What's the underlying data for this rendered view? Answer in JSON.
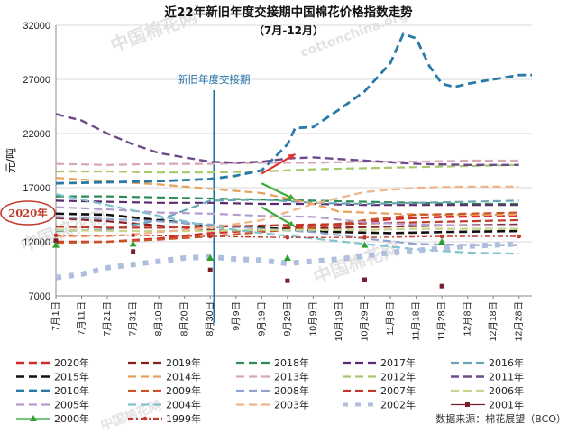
{
  "chart_data": {
    "type": "line",
    "title": "近22年新旧年度交接期中国棉花价格指数走势",
    "subtitle": "（7月-12月）",
    "ylabel": "元/吨",
    "ylim": [
      7000,
      32000
    ],
    "yticks": [
      "32000",
      "27000",
      "22000",
      "17000",
      "12000",
      "7000"
    ],
    "x_labels": [
      "7月1日",
      "7月11日",
      "7月21日",
      "7月31日",
      "8月10日",
      "8月20日",
      "8月30日",
      "9月9日",
      "9月19日",
      "9月29日",
      "10月9日",
      "10月19日",
      "10月29日",
      "11月8日",
      "11月18日",
      "11月28日",
      "12月8日",
      "12月18日",
      "12月28日"
    ],
    "grid": true,
    "annotation": "新旧年度交接期",
    "marker_2020": "2020年",
    "source": "数据来源：棉花展望（BCO）",
    "watermarks": [
      "中国棉花网",
      "cottonchina.org"
    ],
    "series": [
      {
        "name": "2020年",
        "color": "#d42a2a",
        "dash": "long",
        "width": 2.6,
        "points": [
          [
            0,
            12000
          ],
          [
            2,
            12000
          ],
          [
            4,
            12300
          ],
          [
            6,
            12800
          ],
          [
            8,
            13100
          ],
          [
            10,
            13500
          ],
          [
            11,
            13600
          ],
          [
            12,
            13800
          ],
          [
            13,
            14100
          ],
          [
            15,
            14300
          ],
          [
            18,
            14400
          ]
        ]
      },
      {
        "name": "2019年",
        "color": "#8b1d1d",
        "dash": "long",
        "width": 2.2,
        "points": [
          [
            0,
            14200
          ],
          [
            2,
            13900
          ],
          [
            4,
            13500
          ],
          [
            6,
            13100
          ],
          [
            7,
            13000
          ],
          [
            9,
            13200
          ],
          [
            11,
            13300
          ],
          [
            13,
            13400
          ],
          [
            15,
            13500
          ],
          [
            18,
            13600
          ]
        ]
      },
      {
        "name": "2018年",
        "color": "#2e8b57",
        "dash": "long",
        "width": 2.2,
        "points": [
          [
            0,
            16200
          ],
          [
            2,
            16200
          ],
          [
            4,
            16100
          ],
          [
            6,
            16000
          ],
          [
            8,
            15900
          ],
          [
            10,
            15800
          ],
          [
            12,
            15700
          ],
          [
            14,
            15600
          ],
          [
            16,
            15500
          ],
          [
            18,
            15500
          ]
        ]
      },
      {
        "name": "2017年",
        "color": "#5b2c6f",
        "dash": "long",
        "width": 2.2,
        "points": [
          [
            0,
            15800
          ],
          [
            2,
            15700
          ],
          [
            4,
            15600
          ],
          [
            6,
            15600
          ],
          [
            8,
            15500
          ],
          [
            10,
            15500
          ],
          [
            12,
            15400
          ],
          [
            14,
            15400
          ],
          [
            16,
            15400
          ],
          [
            18,
            15400
          ]
        ]
      },
      {
        "name": "2016年",
        "color": "#6aa4b8",
        "dash": "long",
        "width": 2.2,
        "points": [
          [
            0,
            13000
          ],
          [
            2,
            13100
          ],
          [
            4,
            14000
          ],
          [
            6,
            15800
          ],
          [
            8,
            15900
          ],
          [
            10,
            15600
          ],
          [
            12,
            15500
          ],
          [
            14,
            15600
          ],
          [
            16,
            15700
          ],
          [
            18,
            15800
          ]
        ]
      },
      {
        "name": "2015年",
        "color": "#111111",
        "dash": "long",
        "width": 2.6,
        "points": [
          [
            0,
            14600
          ],
          [
            2,
            14500
          ],
          [
            4,
            14000
          ],
          [
            6,
            13500
          ],
          [
            8,
            13300
          ],
          [
            10,
            13000
          ],
          [
            11,
            12900
          ],
          [
            13,
            12800
          ],
          [
            15,
            12900
          ],
          [
            18,
            13000
          ]
        ]
      },
      {
        "name": "2014年",
        "color": "#e8a15c",
        "dash": "long",
        "width": 2.2,
        "points": [
          [
            0,
            17900
          ],
          [
            2,
            17600
          ],
          [
            4,
            17300
          ],
          [
            6,
            16900
          ],
          [
            8,
            16500
          ],
          [
            10,
            15500
          ],
          [
            11,
            14800
          ],
          [
            13,
            14600
          ],
          [
            15,
            14500
          ],
          [
            18,
            14500
          ]
        ]
      },
      {
        "name": "2013年",
        "color": "#d8a7b5",
        "dash": "long",
        "width": 2.2,
        "points": [
          [
            0,
            19200
          ],
          [
            2,
            19100
          ],
          [
            4,
            19200
          ],
          [
            6,
            19200
          ],
          [
            8,
            19300
          ],
          [
            10,
            19300
          ],
          [
            12,
            19400
          ],
          [
            14,
            19400
          ],
          [
            16,
            19500
          ],
          [
            18,
            19500
          ]
        ]
      },
      {
        "name": "2012年",
        "color": "#a7c96a",
        "dash": "long",
        "width": 2.2,
        "points": [
          [
            0,
            18500
          ],
          [
            2,
            18500
          ],
          [
            4,
            18400
          ],
          [
            6,
            18400
          ],
          [
            8,
            18500
          ],
          [
            10,
            18700
          ],
          [
            12,
            18800
          ],
          [
            14,
            18900
          ],
          [
            16,
            19000
          ],
          [
            18,
            19100
          ]
        ]
      },
      {
        "name": "2011年",
        "color": "#6f4a8b",
        "dash": "long",
        "width": 2.4,
        "points": [
          [
            0,
            23800
          ],
          [
            1,
            23200
          ],
          [
            2,
            22000
          ],
          [
            3,
            21000
          ],
          [
            4,
            20200
          ],
          [
            5,
            19800
          ],
          [
            6,
            19400
          ],
          [
            7,
            19300
          ],
          [
            8,
            19400
          ],
          [
            9,
            19700
          ],
          [
            10,
            19800
          ],
          [
            12,
            19500
          ],
          [
            14,
            19200
          ],
          [
            16,
            19100
          ],
          [
            18,
            19100
          ]
        ]
      },
      {
        "name": "2010年",
        "color": "#2a7aa8",
        "dash": "long",
        "width": 2.8,
        "points": [
          [
            0,
            17400
          ],
          [
            2,
            17500
          ],
          [
            4,
            17600
          ],
          [
            6,
            17800
          ],
          [
            7,
            18100
          ],
          [
            8,
            18600
          ],
          [
            9,
            21000
          ],
          [
            9.3,
            22500
          ],
          [
            10,
            22600
          ],
          [
            11,
            24200
          ],
          [
            12,
            25900
          ],
          [
            13,
            28500
          ],
          [
            13.5,
            31200
          ],
          [
            14,
            30800
          ],
          [
            14.5,
            28300
          ],
          [
            15,
            26600
          ],
          [
            15.5,
            26300
          ],
          [
            16,
            26600
          ],
          [
            17,
            27000
          ],
          [
            18,
            27400
          ],
          [
            18.5,
            27400
          ]
        ]
      },
      {
        "name": "2009年",
        "color": "#c8552a",
        "dash": "long",
        "width": 2.2,
        "points": [
          [
            0,
            11900
          ],
          [
            2,
            12000
          ],
          [
            4,
            12200
          ],
          [
            6,
            12500
          ],
          [
            8,
            12900
          ],
          [
            10,
            13300
          ],
          [
            12,
            14000
          ],
          [
            14,
            14500
          ],
          [
            16,
            14600
          ],
          [
            18,
            14700
          ]
        ]
      },
      {
        "name": "2008年",
        "color": "#8fa3cf",
        "dash": "long",
        "width": 2.2,
        "points": [
          [
            0,
            14300
          ],
          [
            2,
            14100
          ],
          [
            4,
            13900
          ],
          [
            6,
            13600
          ],
          [
            8,
            13200
          ],
          [
            10,
            12900
          ],
          [
            12,
            12300
          ],
          [
            14,
            11800
          ],
          [
            16,
            11700
          ],
          [
            18,
            11700
          ]
        ]
      },
      {
        "name": "2007年",
        "color": "#c0392b",
        "dash": "long",
        "width": 2.2,
        "points": [
          [
            0,
            13400
          ],
          [
            2,
            13300
          ],
          [
            4,
            13300
          ],
          [
            6,
            13400
          ],
          [
            8,
            13500
          ],
          [
            10,
            13600
          ],
          [
            12,
            13700
          ],
          [
            14,
            13800
          ],
          [
            16,
            13900
          ],
          [
            18,
            14000
          ]
        ]
      },
      {
        "name": "2006年",
        "color": "#c5d68a",
        "dash": "long",
        "width": 2.2,
        "points": [
          [
            0,
            13100
          ],
          [
            2,
            13000
          ],
          [
            4,
            13000
          ],
          [
            6,
            13000
          ],
          [
            8,
            13100
          ],
          [
            10,
            13100
          ],
          [
            12,
            13100
          ],
          [
            14,
            13200
          ],
          [
            16,
            13200
          ],
          [
            18,
            13200
          ]
        ]
      },
      {
        "name": "2005年",
        "color": "#b59ccf",
        "dash": "long",
        "width": 2.2,
        "points": [
          [
            0,
            15200
          ],
          [
            2,
            15000
          ],
          [
            4,
            14700
          ],
          [
            6,
            14600
          ],
          [
            8,
            14400
          ],
          [
            10,
            14300
          ],
          [
            12,
            13800
          ],
          [
            14,
            13600
          ],
          [
            16,
            13500
          ],
          [
            18,
            13500
          ]
        ]
      },
      {
        "name": "2004年",
        "color": "#7fc3cf",
        "dash": "long",
        "width": 2.2,
        "points": [
          [
            0,
            16400
          ],
          [
            2,
            15400
          ],
          [
            4,
            14400
          ],
          [
            6,
            13400
          ],
          [
            8,
            12800
          ],
          [
            10,
            12300
          ],
          [
            12,
            11800
          ],
          [
            14,
            11300
          ],
          [
            16,
            11000
          ],
          [
            18,
            10900
          ]
        ]
      },
      {
        "name": "2003年",
        "color": "#f0b488",
        "dash": "long",
        "width": 2.2,
        "points": [
          [
            0,
            12500
          ],
          [
            2,
            12500
          ],
          [
            4,
            12900
          ],
          [
            6,
            13300
          ],
          [
            8,
            14000
          ],
          [
            10,
            15500
          ],
          [
            12,
            16600
          ],
          [
            14,
            17000
          ],
          [
            16,
            17100
          ],
          [
            18,
            17100
          ]
        ]
      },
      {
        "name": "2002年",
        "color": "#b0bedd",
        "dash": "square",
        "width": 6,
        "points": [
          [
            0,
            8700
          ],
          [
            1,
            9000
          ],
          [
            2,
            9600
          ],
          [
            3,
            9900
          ],
          [
            4,
            10200
          ],
          [
            5,
            10500
          ],
          [
            6,
            10600
          ],
          [
            7,
            10400
          ],
          [
            8,
            10300
          ],
          [
            9,
            10000
          ],
          [
            10,
            10200
          ],
          [
            11,
            10400
          ],
          [
            12,
            10700
          ],
          [
            13,
            11000
          ],
          [
            14,
            11200
          ],
          [
            15,
            11400
          ],
          [
            16,
            11600
          ],
          [
            17,
            11700
          ],
          [
            18,
            11800
          ]
        ]
      },
      {
        "name": "2001年",
        "color": "#7a1f2b",
        "dash": "none",
        "width": 0,
        "markers": "square",
        "points": [
          [
            0,
            12100
          ],
          [
            3,
            11100
          ],
          [
            6,
            9400
          ],
          [
            9,
            8400
          ],
          [
            12,
            8500
          ],
          [
            15,
            7900
          ]
        ]
      },
      {
        "name": "2000年",
        "color": "#2ca02c",
        "dash": "none",
        "width": 0,
        "markers": "triangle",
        "points": [
          [
            0,
            11700
          ],
          [
            3,
            11800
          ],
          [
            6,
            10500
          ],
          [
            9,
            10500
          ],
          [
            12,
            11700
          ],
          [
            15,
            12000
          ]
        ]
      },
      {
        "name": "1999年",
        "color": "#c0392b",
        "dash": "dashdot",
        "width": 1.4,
        "markers": "dot",
        "points": [
          [
            0,
            12600
          ],
          [
            3,
            12600
          ],
          [
            6,
            12500
          ],
          [
            9,
            12400
          ],
          [
            12,
            12400
          ],
          [
            15,
            12500
          ],
          [
            18,
            12500
          ]
        ]
      }
    ],
    "arrows": [
      {
        "from": [
          8,
          18300
        ],
        "to": [
          9.3,
          20100
        ],
        "color": "#e03030"
      },
      {
        "from": [
          8,
          17400
        ],
        "to": [
          9.3,
          15900
        ],
        "color": "#3aaa3a"
      },
      {
        "from": [
          8,
          15200
        ],
        "to": [
          9.3,
          13400
        ],
        "color": "#3aaa3a"
      }
    ]
  }
}
